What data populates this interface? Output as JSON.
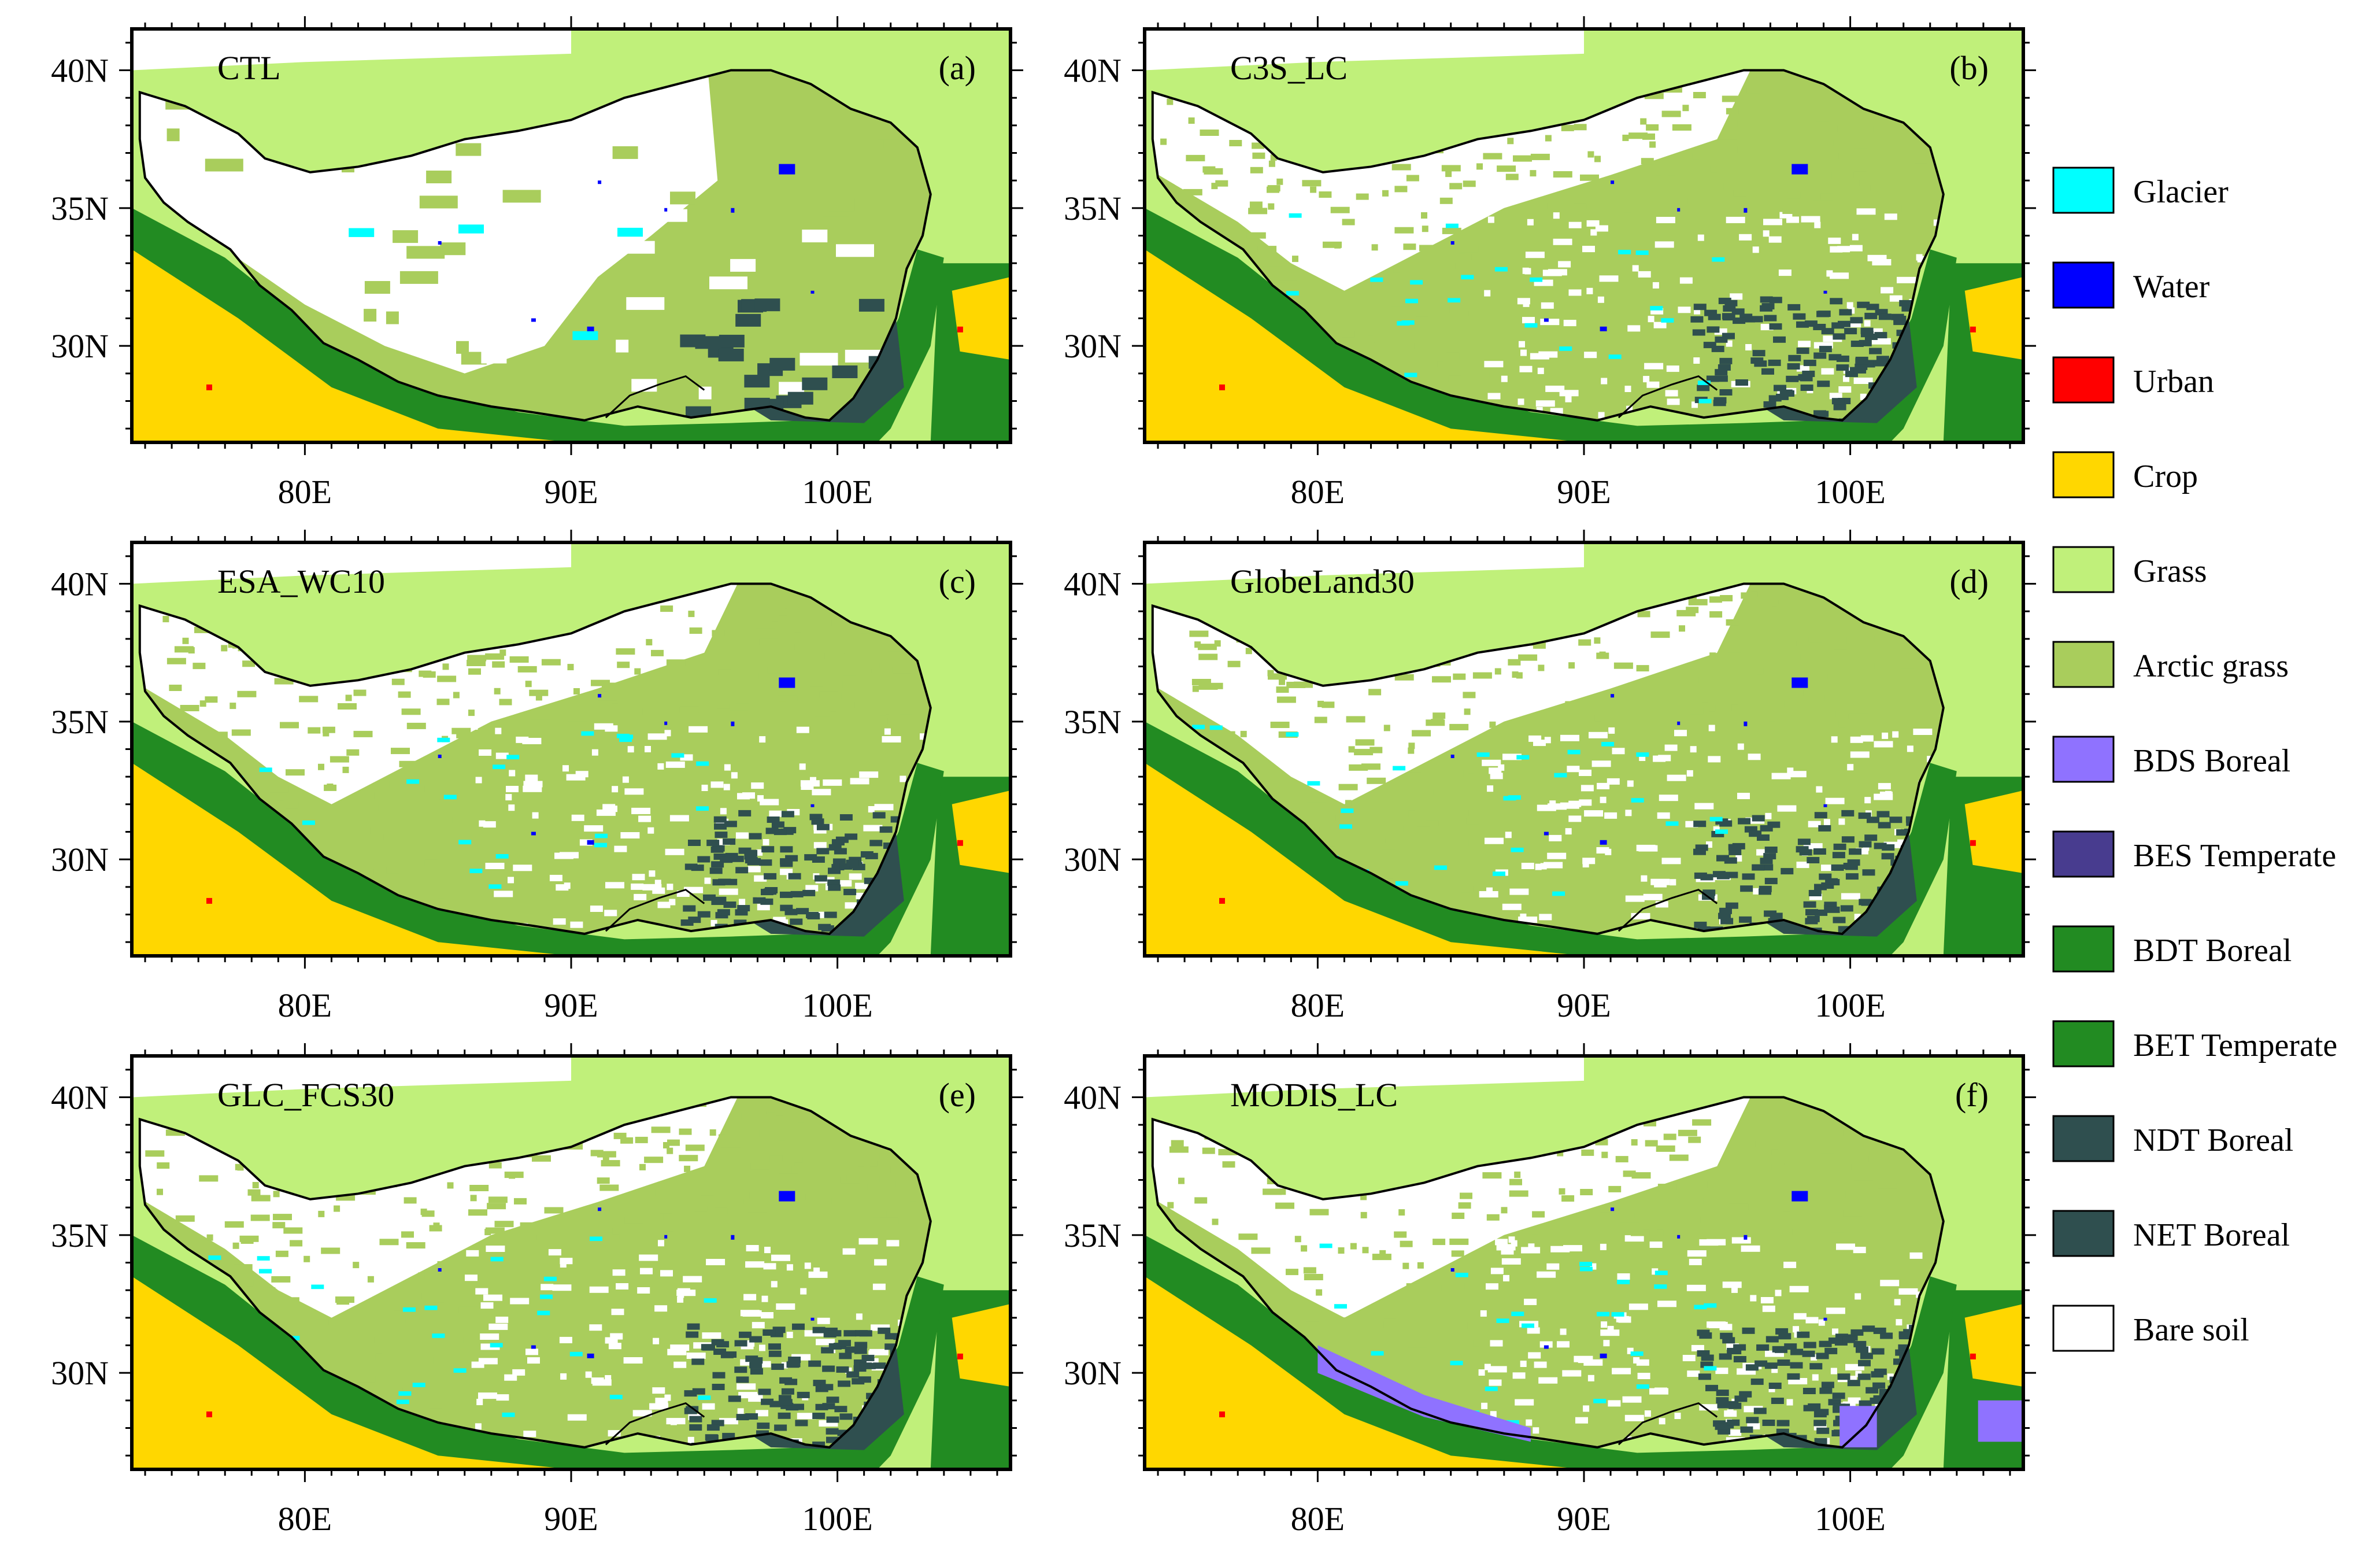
{
  "figure": {
    "x_ticks": [
      "80E",
      "90E",
      "100E"
    ],
    "y_ticks": [
      "40N",
      "35N",
      "30N"
    ]
  },
  "panels": [
    {
      "id": "a",
      "name": "CTL",
      "tag": "(a)",
      "style": "coarse"
    },
    {
      "id": "b",
      "name": "C3S_LC",
      "tag": "(b)",
      "style": "fine"
    },
    {
      "id": "c",
      "name": "ESA_WC10",
      "tag": "(c)",
      "style": "fine-bare"
    },
    {
      "id": "d",
      "name": "GlobeLand30",
      "tag": "(d)",
      "style": "fine-bare"
    },
    {
      "id": "e",
      "name": "GLC_FCS30",
      "tag": "(e)",
      "style": "fine-bare"
    },
    {
      "id": "f",
      "name": "MODIS_LC",
      "tag": "(f)",
      "style": "fine-bds"
    }
  ],
  "legend": [
    {
      "label": "Glacier",
      "color": "#00ffff"
    },
    {
      "label": "Water",
      "color": "#0000ff"
    },
    {
      "label": "Urban",
      "color": "#ff0000"
    },
    {
      "label": "Crop",
      "color": "#ffd700"
    },
    {
      "label": "Grass",
      "color": "#c0f07a"
    },
    {
      "label": "Arctic grass",
      "color": "#a9cd5c"
    },
    {
      "label": "BDS Boreal",
      "color": "#8f72ff"
    },
    {
      "label": "BES Temperate",
      "color": "#483c8f"
    },
    {
      "label": "BDT Boreal",
      "color": "#228b22"
    },
    {
      "label": "BET Temperate",
      "color": "#228b22"
    },
    {
      "label": "NDT Boreal",
      "color": "#2f4f4f"
    },
    {
      "label": "NET Boreal",
      "color": "#2f4f4f"
    },
    {
      "label": "Bare soil",
      "color": "#ffffff"
    }
  ]
}
